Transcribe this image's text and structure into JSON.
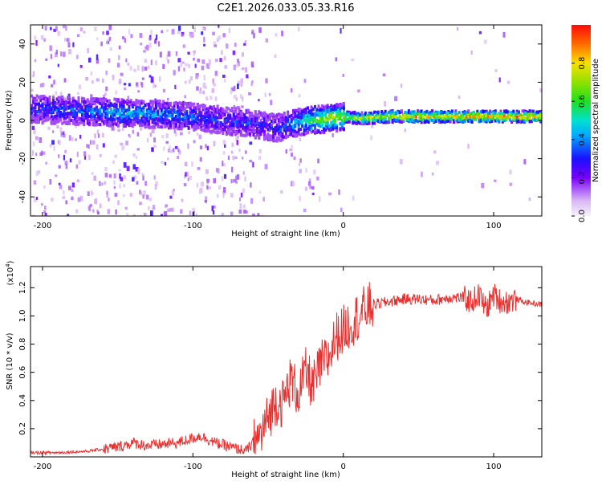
{
  "title": "C2E1.2026.033.05.33.R16",
  "chart_data": [
    {
      "type": "heatmap",
      "name": "spectrogram",
      "xlabel": "Height of straight line (km)",
      "ylabel": "Frequency (Hz)",
      "xlim": [
        -208,
        132
      ],
      "ylim": [
        -50,
        50
      ],
      "xticks": [
        -200,
        -100,
        0,
        100
      ],
      "yticks": [
        -40,
        -20,
        0,
        20,
        40
      ],
      "colorbar": {
        "label": "Normalized spectral amplitude",
        "range": [
          0.0,
          1.0
        ],
        "ticks": [
          0.0,
          0.2,
          0.4,
          0.6,
          0.8
        ],
        "colormap": "rainbow-magenta-to-red"
      },
      "ridge": {
        "x": [
          -208,
          -180,
          -150,
          -120,
          -100,
          -80,
          -60,
          -45,
          -35,
          -25,
          -10,
          0,
          10,
          30,
          50,
          80,
          100,
          132
        ],
        "freq": [
          6,
          5,
          4,
          3,
          2,
          0,
          -2,
          -4,
          -2,
          0,
          1,
          2,
          1,
          2,
          2,
          2,
          2,
          2
        ],
        "amplitude": [
          0.3,
          0.35,
          0.45,
          0.4,
          0.35,
          0.3,
          0.3,
          0.3,
          0.4,
          0.55,
          0.75,
          0.7,
          0.75,
          0.8,
          0.85,
          0.85,
          0.9,
          0.9
        ]
      }
    },
    {
      "type": "line",
      "name": "snr",
      "xlabel": "Height of straight line (km)",
      "ylabel": "SNR (10 * v/v)",
      "yscale_label": "(x10",
      "yscale_exp": "4",
      "yscale_close": ")",
      "xlim": [
        -208,
        132
      ],
      "ylim": [
        0,
        1.35
      ],
      "xticks": [
        -200,
        -100,
        0,
        100
      ],
      "yticks": [
        0.2,
        0.4,
        0.6,
        0.8,
        1.0,
        1.2
      ],
      "series": [
        {
          "name": "SNR",
          "color": "#e8302f",
          "x": [
            -208,
            -190,
            -170,
            -150,
            -140,
            -130,
            -110,
            -95,
            -85,
            -75,
            -65,
            -55,
            -45,
            -40,
            -35,
            -30,
            -25,
            -20,
            -15,
            -10,
            -5,
            0,
            5,
            10,
            15,
            20,
            30,
            40,
            50,
            60,
            70,
            80,
            85,
            90,
            95,
            100,
            105,
            110,
            115,
            120,
            132
          ],
          "y": [
            0.03,
            0.03,
            0.04,
            0.07,
            0.1,
            0.08,
            0.1,
            0.15,
            0.1,
            0.07,
            0.04,
            0.15,
            0.4,
            0.38,
            0.55,
            0.45,
            0.6,
            0.5,
            0.65,
            0.7,
            0.85,
            0.9,
            0.95,
            1.0,
            1.05,
            1.08,
            1.1,
            1.12,
            1.12,
            1.11,
            1.13,
            1.13,
            1.1,
            1.15,
            1.05,
            1.15,
            1.1,
            1.1,
            1.12,
            1.1,
            1.08
          ]
        }
      ]
    }
  ]
}
